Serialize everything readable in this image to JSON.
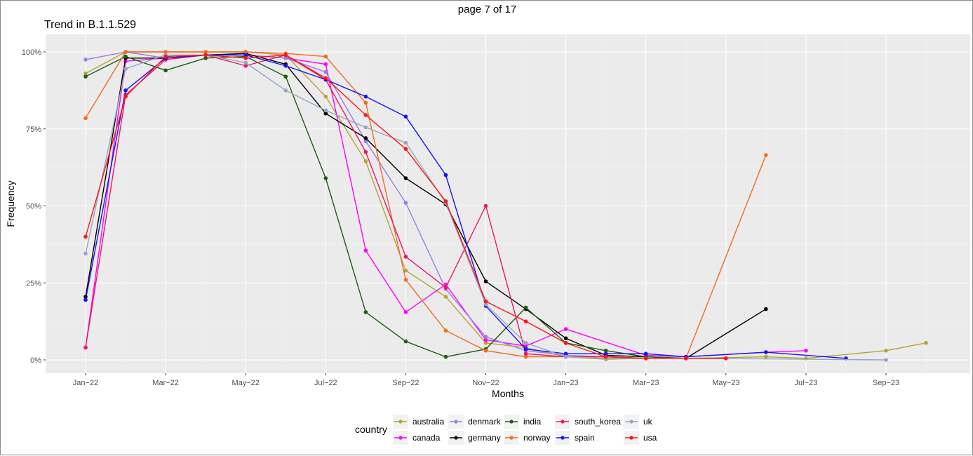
{
  "page_label": "page 7 of 17",
  "chart_data": {
    "type": "line",
    "title": "Trend in B.1.1.529",
    "xlabel": "Months",
    "ylabel": "Frequency",
    "ylim": [
      0,
      1
    ],
    "y_ticks": [
      0,
      0.25,
      0.5,
      0.75,
      1.0
    ],
    "y_tick_labels": [
      "0%",
      "25%",
      "50%",
      "75%",
      "100%"
    ],
    "x": [
      "Jan-22",
      "Feb-22",
      "Mar-22",
      "Apr-22",
      "May-22",
      "Jun-22",
      "Jul-22",
      "Aug-22",
      "Sep-22",
      "Oct-22",
      "Nov-22",
      "Dec-22",
      "Jan-23",
      "Feb-23",
      "Mar-23",
      "Apr-23",
      "May-23",
      "Jun-23",
      "Jul-23",
      "Aug-23",
      "Sep-23",
      "Oct-23"
    ],
    "x_tick_labels": [
      "Jan−22",
      "Mar−22",
      "May−22",
      "Jul−22",
      "Sep−22",
      "Nov−22",
      "Jan−23",
      "Mar−23",
      "May−23",
      "Jul−23",
      "Sep−23"
    ],
    "x_tick_positions": [
      0,
      2,
      4,
      6,
      8,
      10,
      12,
      14,
      16,
      18,
      20
    ],
    "grid": true,
    "legend_title": "country",
    "legend_position": "bottom",
    "series": [
      {
        "name": "australia",
        "color": "#b5a434",
        "values": [
          0.93,
          1.0,
          1.0,
          1.0,
          1.0,
          0.99,
          0.855,
          0.645,
          0.29,
          0.205,
          0.055,
          0.04,
          0.01,
          0.002,
          0.005,
          0.005,
          null,
          0.01,
          0.005,
          null,
          0.03,
          0.055
        ]
      },
      {
        "name": "canada",
        "color": "#ff00ff",
        "values": [
          0.04,
          0.97,
          0.98,
          0.99,
          0.99,
          0.98,
          0.96,
          0.355,
          0.155,
          0.245,
          0.065,
          0.045,
          0.1,
          null,
          0.015,
          0.01,
          null,
          0.025,
          0.03,
          null,
          null,
          null
        ]
      },
      {
        "name": "denmark",
        "color": "#9b7be6",
        "values": [
          0.975,
          1.0,
          0.98,
          0.99,
          0.99,
          0.98,
          0.935,
          0.71,
          0.51,
          0.23,
          0.075,
          0.03,
          0.015,
          0.01,
          0.005,
          0.005,
          null,
          null,
          null,
          null,
          null,
          null
        ]
      },
      {
        "name": "germany",
        "color": "#000000",
        "values": [
          0.205,
          0.98,
          0.98,
          0.99,
          0.995,
          0.96,
          0.8,
          0.72,
          0.59,
          0.505,
          0.255,
          0.165,
          0.07,
          0.015,
          0.01,
          0.005,
          null,
          0.165,
          null,
          null,
          null,
          null
        ]
      },
      {
        "name": "india",
        "color": "#1a5e0e",
        "values": [
          0.92,
          0.985,
          0.94,
          0.98,
          0.985,
          0.92,
          0.59,
          0.155,
          0.06,
          0.01,
          0.035,
          0.17,
          0.055,
          0.03,
          0.01,
          0.005,
          null,
          null,
          null,
          null,
          null,
          null
        ]
      },
      {
        "name": "norway",
        "color": "#f26b1d",
        "values": [
          0.785,
          1.0,
          1.0,
          1.0,
          1.0,
          0.995,
          0.985,
          0.835,
          0.26,
          0.095,
          0.03,
          0.01,
          0.01,
          0.01,
          0.005,
          0.005,
          null,
          0.665,
          null,
          null,
          null,
          null
        ]
      },
      {
        "name": "south_korea",
        "color": "#ee1466",
        "values": [
          0.04,
          0.86,
          0.975,
          0.99,
          0.955,
          0.99,
          0.91,
          0.675,
          0.335,
          0.235,
          0.5,
          0.02,
          0.01,
          0.01,
          0.005,
          0.005,
          0.005,
          null,
          null,
          null,
          null,
          null
        ]
      },
      {
        "name": "spain",
        "color": "#1414f5",
        "values": [
          0.195,
          0.875,
          0.98,
          0.99,
          0.99,
          0.955,
          0.91,
          0.855,
          0.79,
          0.6,
          0.175,
          0.035,
          0.02,
          0.02,
          0.02,
          0.01,
          null,
          0.025,
          null,
          0.005,
          null,
          null
        ]
      },
      {
        "name": "uk",
        "color": "#94a6c2",
        "values": [
          0.345,
          0.945,
          0.99,
          0.99,
          0.965,
          0.875,
          0.81,
          0.755,
          0.705,
          0.51,
          0.18,
          0.055,
          0.01,
          0.005,
          0.005,
          0.005,
          null,
          null,
          null,
          null,
          0.0,
          null
        ]
      },
      {
        "name": "usa",
        "color": "#ff1414",
        "values": [
          0.4,
          0.855,
          0.985,
          0.99,
          0.98,
          0.99,
          0.915,
          0.795,
          0.685,
          0.515,
          0.19,
          0.125,
          0.055,
          0.01,
          0.005,
          0.005,
          0.005,
          null,
          null,
          null,
          null,
          null
        ]
      }
    ]
  }
}
